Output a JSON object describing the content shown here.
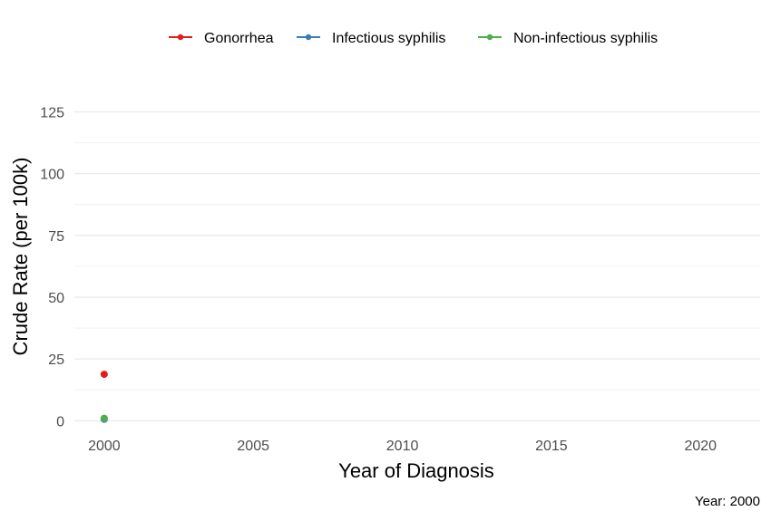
{
  "chart_data": {
    "type": "line",
    "xlabel": "Year of Diagnosis",
    "ylabel": "Crude Rate (per 100k)",
    "xlim": [
      1999,
      2022
    ],
    "ylim": [
      -5,
      138
    ],
    "x_ticks": [
      2000,
      2005,
      2010,
      2015,
      2020
    ],
    "y_ticks": [
      0,
      25,
      50,
      75,
      100,
      125
    ],
    "grid": true,
    "legend_position": "top",
    "caption": "Year: 2000",
    "series": [
      {
        "name": "Gonorrhea",
        "color": "#e41a1c",
        "x": [
          2000
        ],
        "y": [
          18.8
        ]
      },
      {
        "name": "Infectious syphilis",
        "color": "#377eb8",
        "x": [
          2000
        ],
        "y": [
          0.6
        ]
      },
      {
        "name": "Non-infectious syphilis",
        "color": "#4daf4a",
        "x": [
          2000
        ],
        "y": [
          1.0
        ]
      }
    ]
  }
}
